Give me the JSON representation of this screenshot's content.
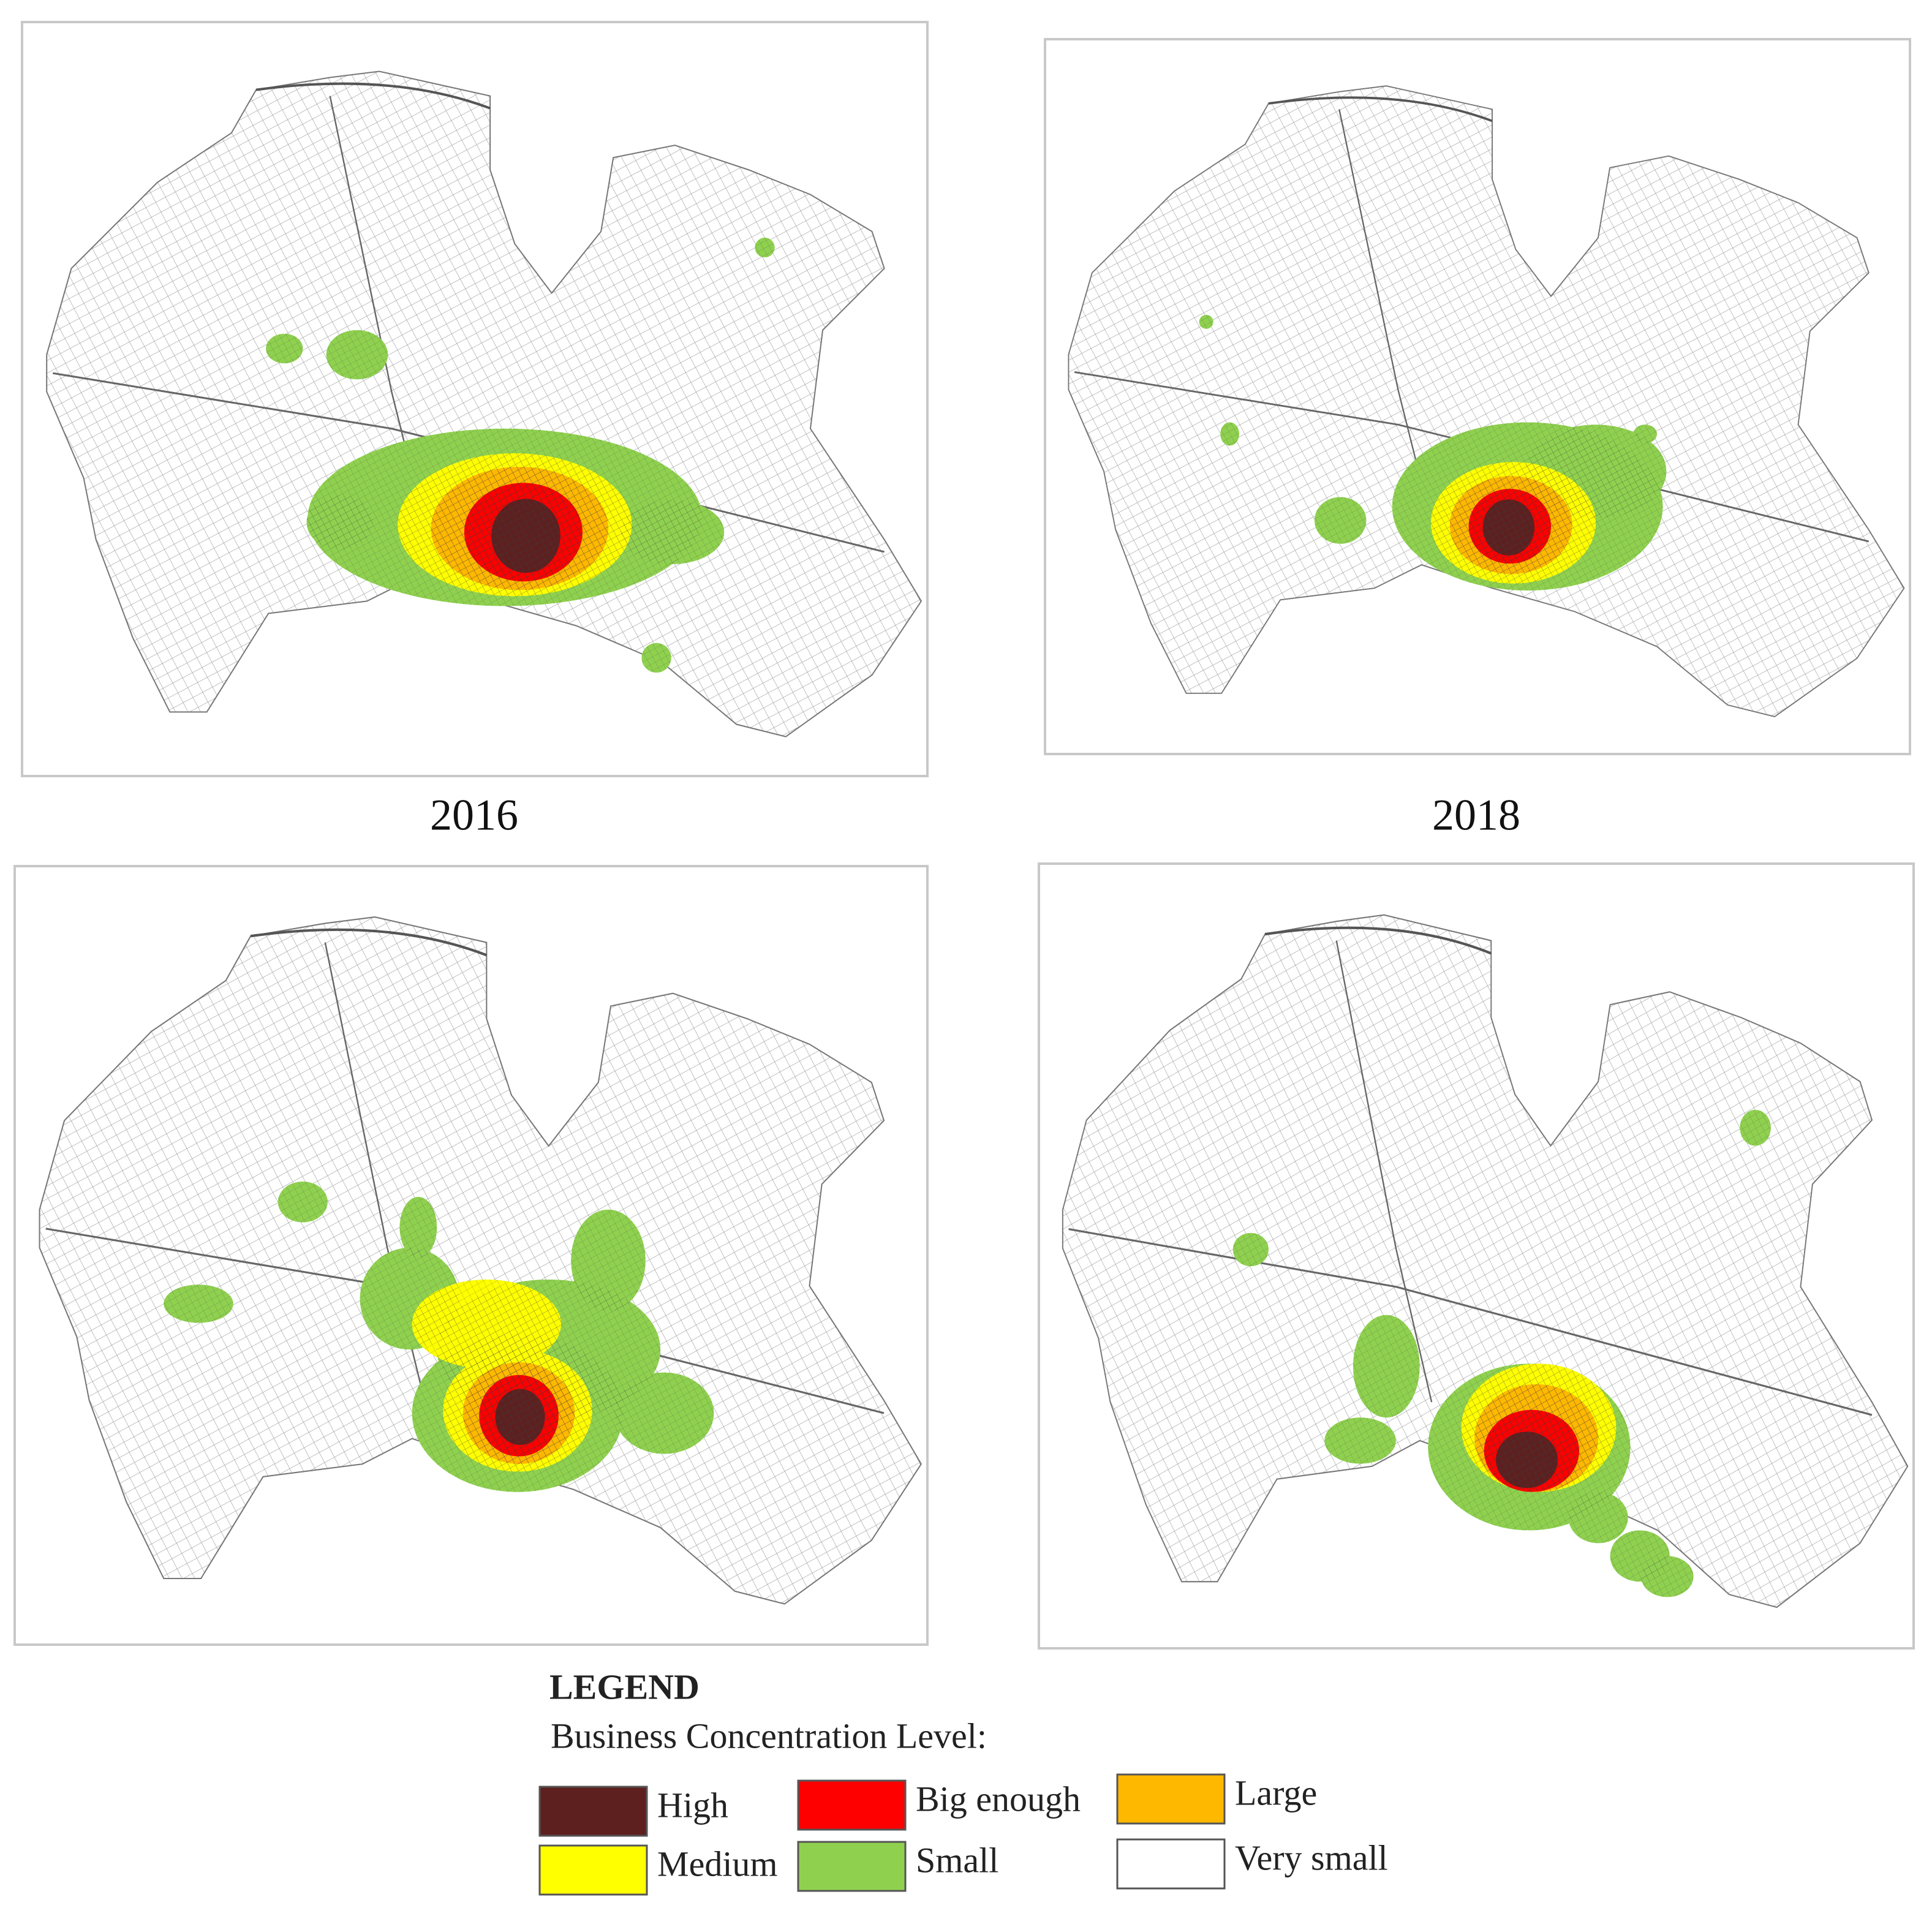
{
  "panel_labels": [
    "2016",
    "2018"
  ],
  "legend": {
    "title": "LEGEND",
    "subtitle": "Business Concentration Level:",
    "items": [
      {
        "label": "High",
        "color": "#5e1f1f"
      },
      {
        "label": "Big enough",
        "color": "#ff0000"
      },
      {
        "label": "Large",
        "color": "#ffb800"
      },
      {
        "label": "Medium",
        "color": "#ffff00"
      },
      {
        "label": "Small",
        "color": "#8fd14f"
      },
      {
        "label": "Very small",
        "color": "#ffffff"
      }
    ]
  }
}
